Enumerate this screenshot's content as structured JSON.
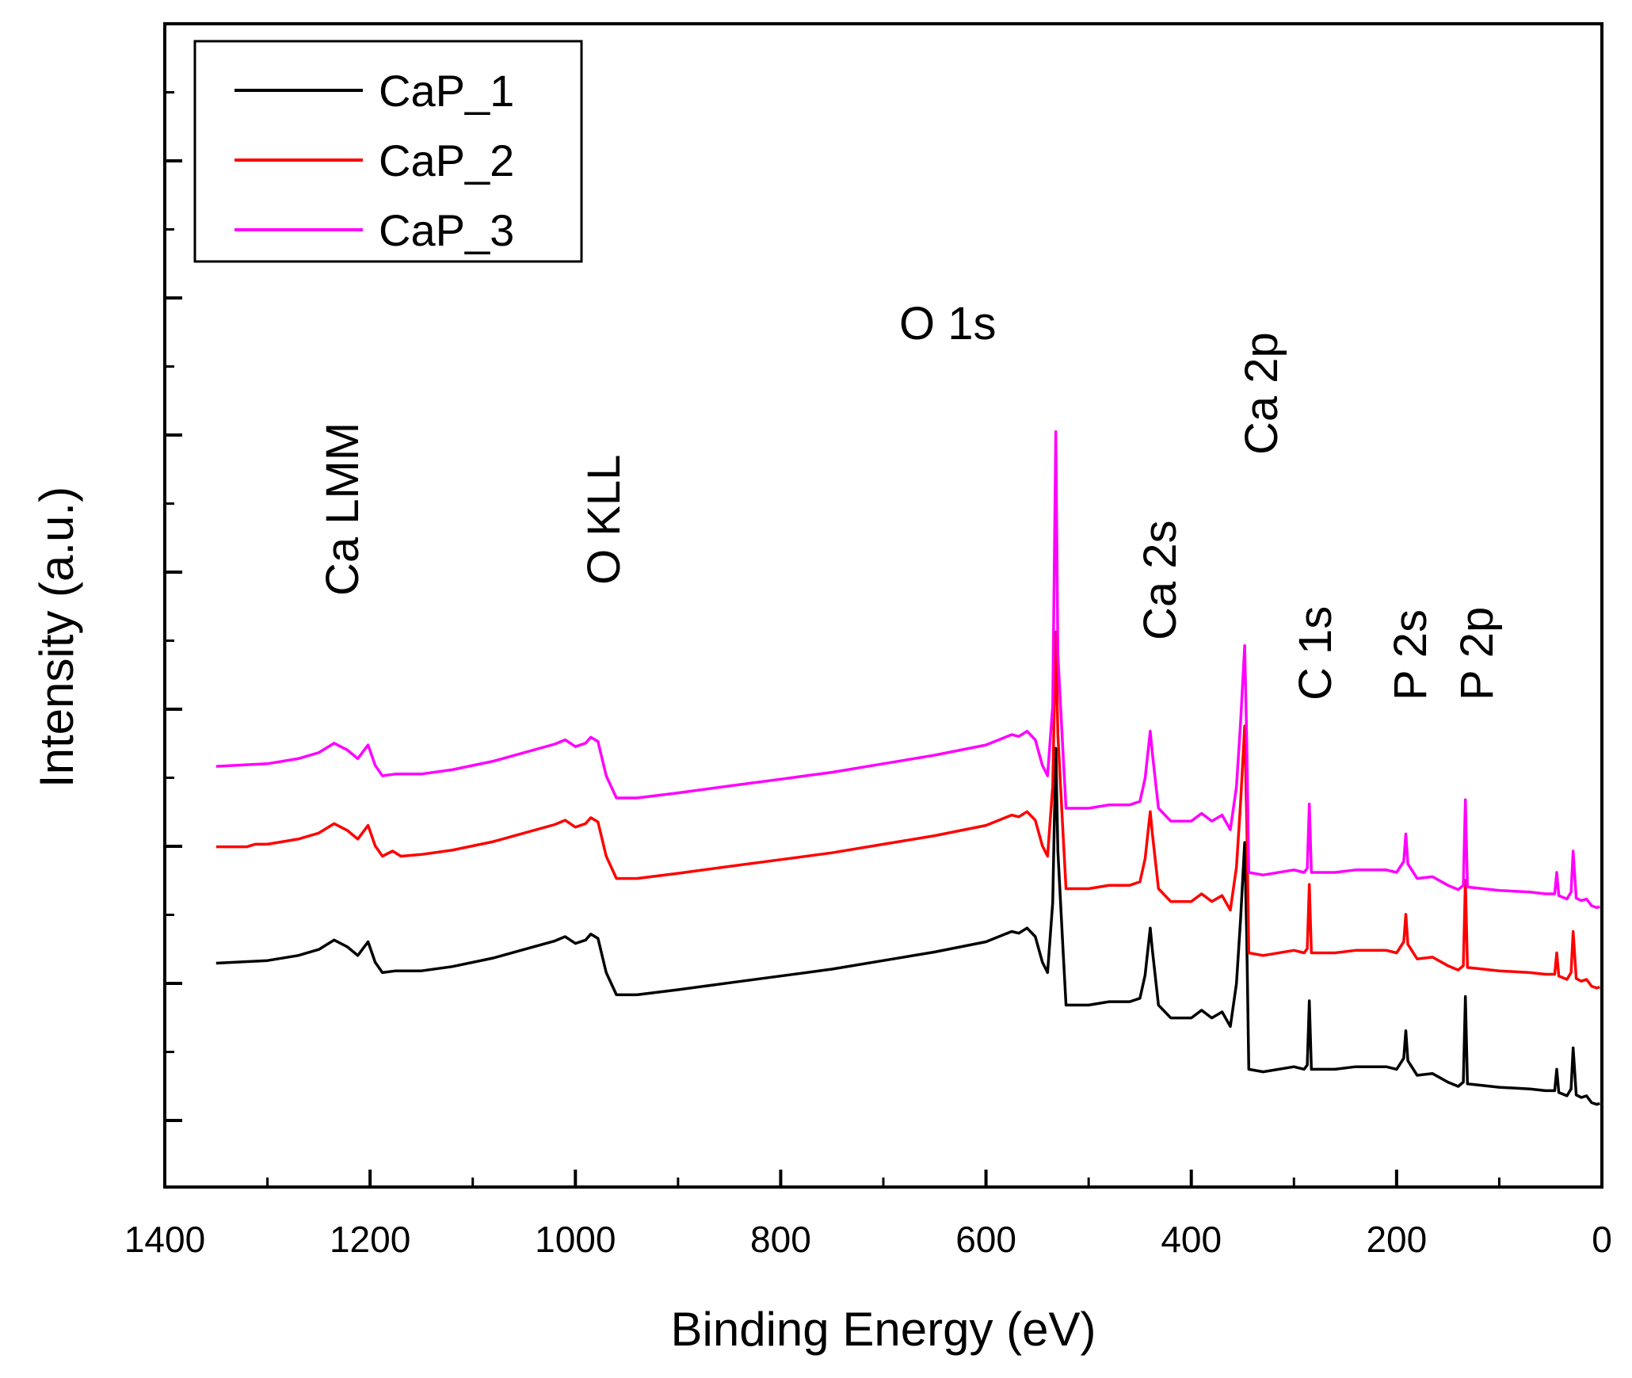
{
  "chart_data": {
    "type": "line",
    "title": "",
    "xlabel": "Binding Energy (eV)",
    "ylabel": "Intensity (a.u.)",
    "xlim": [
      1400,
      0
    ],
    "x_reversed": true,
    "xticks": [
      1400,
      1200,
      1000,
      800,
      600,
      400,
      200,
      0
    ],
    "xtick_labels": [
      "1400",
      "1200",
      "1000",
      "800",
      "600",
      "400",
      "200",
      "0"
    ],
    "y_tick_labels_shown": false,
    "legend": {
      "placement": "top-left"
    },
    "series": [
      {
        "name": "CaP_1",
        "color": "#000000",
        "offset": 0,
        "points": [
          [
            1350,
            0.69
          ],
          [
            1300,
            0.72
          ],
          [
            1270,
            0.78
          ],
          [
            1250,
            0.85
          ],
          [
            1235,
            0.96
          ],
          [
            1222,
            0.88
          ],
          [
            1212,
            0.78
          ],
          [
            1202,
            0.94
          ],
          [
            1195,
            0.7
          ],
          [
            1188,
            0.58
          ],
          [
            1175,
            0.6
          ],
          [
            1150,
            0.6
          ],
          [
            1120,
            0.65
          ],
          [
            1080,
            0.75
          ],
          [
            1050,
            0.85
          ],
          [
            1020,
            0.95
          ],
          [
            1010,
            1.0
          ],
          [
            1000,
            0.92
          ],
          [
            990,
            0.96
          ],
          [
            985,
            1.03
          ],
          [
            978,
            0.98
          ],
          [
            970,
            0.58
          ],
          [
            960,
            0.32
          ],
          [
            940,
            0.32
          ],
          [
            900,
            0.38
          ],
          [
            850,
            0.46
          ],
          [
            800,
            0.54
          ],
          [
            750,
            0.62
          ],
          [
            700,
            0.72
          ],
          [
            650,
            0.82
          ],
          [
            600,
            0.94
          ],
          [
            575,
            1.06
          ],
          [
            568,
            1.04
          ],
          [
            560,
            1.1
          ],
          [
            552,
            1.0
          ],
          [
            545,
            0.7
          ],
          [
            540,
            0.58
          ],
          [
            535,
            1.4
          ],
          [
            532,
            3.2
          ],
          [
            530,
            2.0
          ],
          [
            525,
            0.85
          ],
          [
            522,
            0.2
          ],
          [
            500,
            0.2
          ],
          [
            480,
            0.24
          ],
          [
            460,
            0.24
          ],
          [
            450,
            0.28
          ],
          [
            445,
            0.55
          ],
          [
            440,
            1.1
          ],
          [
            438,
            0.85
          ],
          [
            432,
            0.2
          ],
          [
            420,
            0.05
          ],
          [
            400,
            0.05
          ],
          [
            390,
            0.14
          ],
          [
            380,
            0.05
          ],
          [
            370,
            0.12
          ],
          [
            362,
            -0.05
          ],
          [
            356,
            0.45
          ],
          [
            352,
            1.2
          ],
          [
            348,
            2.1
          ],
          [
            346,
            1.0
          ],
          [
            344,
            -0.55
          ],
          [
            330,
            -0.58
          ],
          [
            300,
            -0.52
          ],
          [
            290,
            -0.55
          ],
          [
            287,
            -0.5
          ],
          [
            285,
            0.25
          ],
          [
            283,
            -0.55
          ],
          [
            260,
            -0.55
          ],
          [
            240,
            -0.52
          ],
          [
            210,
            -0.52
          ],
          [
            200,
            -0.55
          ],
          [
            193,
            -0.42
          ],
          [
            191,
            -0.1
          ],
          [
            189,
            -0.45
          ],
          [
            180,
            -0.62
          ],
          [
            165,
            -0.6
          ],
          [
            150,
            -0.7
          ],
          [
            140,
            -0.75
          ],
          [
            135,
            -0.7
          ],
          [
            133,
            0.3
          ],
          [
            131,
            -0.72
          ],
          [
            100,
            -0.76
          ],
          [
            70,
            -0.78
          ],
          [
            55,
            -0.8
          ],
          [
            46,
            -0.8
          ],
          [
            44,
            -0.55
          ],
          [
            42,
            -0.82
          ],
          [
            34,
            -0.86
          ],
          [
            30,
            -0.78
          ],
          [
            28,
            -0.3
          ],
          [
            25,
            -0.85
          ],
          [
            20,
            -0.88
          ],
          [
            15,
            -0.86
          ],
          [
            10,
            -0.94
          ],
          [
            5,
            -0.96
          ],
          [
            2,
            -0.95
          ]
        ]
      },
      {
        "name": "CaP_2",
        "color": "#ff0000",
        "offset": 1.36,
        "points": [
          [
            1350,
            0.69
          ],
          [
            1320,
            0.69
          ],
          [
            1312,
            0.72
          ],
          [
            1300,
            0.72
          ],
          [
            1270,
            0.78
          ],
          [
            1250,
            0.85
          ],
          [
            1235,
            0.96
          ],
          [
            1222,
            0.88
          ],
          [
            1212,
            0.78
          ],
          [
            1202,
            0.94
          ],
          [
            1195,
            0.7
          ],
          [
            1188,
            0.58
          ],
          [
            1178,
            0.64
          ],
          [
            1170,
            0.58
          ],
          [
            1150,
            0.6
          ],
          [
            1120,
            0.65
          ],
          [
            1080,
            0.75
          ],
          [
            1050,
            0.85
          ],
          [
            1020,
            0.95
          ],
          [
            1010,
            1.0
          ],
          [
            1000,
            0.92
          ],
          [
            990,
            0.96
          ],
          [
            985,
            1.03
          ],
          [
            978,
            0.98
          ],
          [
            970,
            0.58
          ],
          [
            960,
            0.32
          ],
          [
            940,
            0.32
          ],
          [
            900,
            0.38
          ],
          [
            850,
            0.46
          ],
          [
            800,
            0.54
          ],
          [
            750,
            0.62
          ],
          [
            700,
            0.72
          ],
          [
            650,
            0.82
          ],
          [
            600,
            0.94
          ],
          [
            575,
            1.06
          ],
          [
            568,
            1.04
          ],
          [
            560,
            1.1
          ],
          [
            552,
            1.0
          ],
          [
            545,
            0.7
          ],
          [
            540,
            0.58
          ],
          [
            535,
            1.4
          ],
          [
            532,
            3.2
          ],
          [
            530,
            2.0
          ],
          [
            525,
            0.85
          ],
          [
            522,
            0.2
          ],
          [
            500,
            0.2
          ],
          [
            480,
            0.24
          ],
          [
            460,
            0.24
          ],
          [
            450,
            0.28
          ],
          [
            445,
            0.55
          ],
          [
            440,
            1.1
          ],
          [
            438,
            0.85
          ],
          [
            432,
            0.2
          ],
          [
            420,
            0.05
          ],
          [
            400,
            0.05
          ],
          [
            390,
            0.14
          ],
          [
            380,
            0.05
          ],
          [
            370,
            0.12
          ],
          [
            362,
            -0.05
          ],
          [
            356,
            0.45
          ],
          [
            352,
            1.2
          ],
          [
            348,
            2.1
          ],
          [
            346,
            1.0
          ],
          [
            344,
            -0.55
          ],
          [
            330,
            -0.58
          ],
          [
            300,
            -0.52
          ],
          [
            290,
            -0.55
          ],
          [
            287,
            -0.5
          ],
          [
            285,
            0.25
          ],
          [
            283,
            -0.55
          ],
          [
            260,
            -0.55
          ],
          [
            240,
            -0.52
          ],
          [
            210,
            -0.52
          ],
          [
            200,
            -0.55
          ],
          [
            193,
            -0.42
          ],
          [
            191,
            -0.1
          ],
          [
            189,
            -0.45
          ],
          [
            180,
            -0.62
          ],
          [
            165,
            -0.6
          ],
          [
            150,
            -0.7
          ],
          [
            140,
            -0.75
          ],
          [
            135,
            -0.7
          ],
          [
            133,
            0.3
          ],
          [
            131,
            -0.72
          ],
          [
            100,
            -0.76
          ],
          [
            70,
            -0.78
          ],
          [
            55,
            -0.8
          ],
          [
            46,
            -0.8
          ],
          [
            44,
            -0.55
          ],
          [
            42,
            -0.82
          ],
          [
            34,
            -0.86
          ],
          [
            30,
            -0.78
          ],
          [
            28,
            -0.3
          ],
          [
            25,
            -0.85
          ],
          [
            20,
            -0.88
          ],
          [
            15,
            -0.86
          ],
          [
            10,
            -0.94
          ],
          [
            5,
            -0.96
          ],
          [
            2,
            -0.95
          ]
        ]
      },
      {
        "name": "CaP_3",
        "color": "#ff00ff",
        "offset": 2.3,
        "points": [
          [
            1350,
            0.69
          ],
          [
            1300,
            0.72
          ],
          [
            1270,
            0.78
          ],
          [
            1250,
            0.85
          ],
          [
            1235,
            0.96
          ],
          [
            1222,
            0.88
          ],
          [
            1212,
            0.78
          ],
          [
            1202,
            0.94
          ],
          [
            1195,
            0.7
          ],
          [
            1188,
            0.58
          ],
          [
            1175,
            0.6
          ],
          [
            1150,
            0.6
          ],
          [
            1120,
            0.65
          ],
          [
            1080,
            0.75
          ],
          [
            1050,
            0.85
          ],
          [
            1020,
            0.95
          ],
          [
            1010,
            1.0
          ],
          [
            1000,
            0.92
          ],
          [
            990,
            0.96
          ],
          [
            985,
            1.03
          ],
          [
            978,
            0.98
          ],
          [
            970,
            0.58
          ],
          [
            960,
            0.32
          ],
          [
            940,
            0.32
          ],
          [
            900,
            0.38
          ],
          [
            850,
            0.46
          ],
          [
            800,
            0.54
          ],
          [
            750,
            0.62
          ],
          [
            700,
            0.72
          ],
          [
            650,
            0.82
          ],
          [
            600,
            0.94
          ],
          [
            575,
            1.06
          ],
          [
            568,
            1.04
          ],
          [
            560,
            1.1
          ],
          [
            552,
            1.0
          ],
          [
            545,
            0.7
          ],
          [
            540,
            0.58
          ],
          [
            535,
            1.4
          ],
          [
            532,
            4.6
          ],
          [
            530,
            2.0
          ],
          [
            525,
            0.85
          ],
          [
            522,
            0.2
          ],
          [
            500,
            0.2
          ],
          [
            480,
            0.24
          ],
          [
            460,
            0.24
          ],
          [
            450,
            0.28
          ],
          [
            445,
            0.55
          ],
          [
            440,
            1.1
          ],
          [
            438,
            0.85
          ],
          [
            432,
            0.2
          ],
          [
            420,
            0.05
          ],
          [
            400,
            0.05
          ],
          [
            390,
            0.14
          ],
          [
            380,
            0.05
          ],
          [
            370,
            0.12
          ],
          [
            362,
            -0.05
          ],
          [
            356,
            0.45
          ],
          [
            352,
            1.2
          ],
          [
            348,
            2.1
          ],
          [
            346,
            1.0
          ],
          [
            344,
            -0.55
          ],
          [
            330,
            -0.58
          ],
          [
            300,
            -0.52
          ],
          [
            290,
            -0.55
          ],
          [
            287,
            -0.5
          ],
          [
            285,
            0.25
          ],
          [
            283,
            -0.55
          ],
          [
            260,
            -0.55
          ],
          [
            240,
            -0.52
          ],
          [
            210,
            -0.52
          ],
          [
            200,
            -0.55
          ],
          [
            193,
            -0.42
          ],
          [
            191,
            -0.1
          ],
          [
            189,
            -0.45
          ],
          [
            180,
            -0.62
          ],
          [
            165,
            -0.6
          ],
          [
            150,
            -0.7
          ],
          [
            140,
            -0.75
          ],
          [
            135,
            -0.7
          ],
          [
            133,
            0.3
          ],
          [
            131,
            -0.72
          ],
          [
            100,
            -0.76
          ],
          [
            70,
            -0.78
          ],
          [
            55,
            -0.8
          ],
          [
            46,
            -0.8
          ],
          [
            44,
            -0.55
          ],
          [
            42,
            -0.82
          ],
          [
            34,
            -0.86
          ],
          [
            30,
            -0.78
          ],
          [
            28,
            -0.3
          ],
          [
            25,
            -0.85
          ],
          [
            20,
            -0.88
          ],
          [
            15,
            -0.86
          ],
          [
            10,
            -0.94
          ],
          [
            5,
            -0.96
          ],
          [
            2,
            -0.95
          ]
        ]
      }
    ],
    "annotations": [
      {
        "text": "Ca LMM",
        "x": 1220,
        "vertical": true
      },
      {
        "text": "O KLL",
        "x": 975,
        "vertical": true
      },
      {
        "text": "O 1s",
        "x": 640,
        "vertical": false
      },
      {
        "text": "Ca 2s",
        "x": 440,
        "vertical": true
      },
      {
        "text": "Ca 2p",
        "x": 347,
        "vertical": true
      },
      {
        "text": "C 1s",
        "x": 285,
        "vertical": true
      },
      {
        "text": "P 2s",
        "x": 193,
        "vertical": true
      },
      {
        "text": "P 2p",
        "x": 133,
        "vertical": true
      }
    ]
  }
}
